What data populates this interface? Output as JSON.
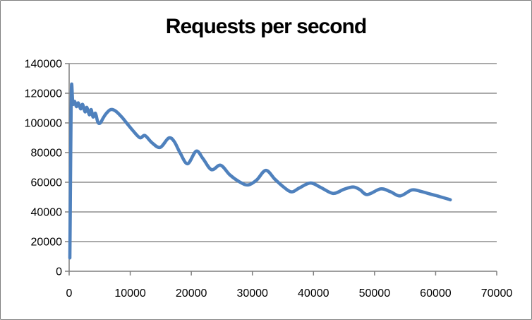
{
  "title": "Requests per second",
  "chart_data": {
    "type": "line",
    "title": "Requests per second",
    "legend_position": "none",
    "grid": "horizontal-only",
    "x_axis": {
      "min": 0,
      "max": 70000,
      "tick_interval": 10000,
      "tick_labels": [
        "0",
        "10000",
        "20000",
        "30000",
        "40000",
        "50000",
        "60000",
        "70000"
      ]
    },
    "y_axis": {
      "min": 0,
      "max": 140000,
      "tick_interval": 20000,
      "tick_labels": [
        "0",
        "20000",
        "40000",
        "60000",
        "80000",
        "100000",
        "120000",
        "140000"
      ]
    },
    "colors": {
      "line": "#4F81BD",
      "gridline": "#8E8E8E",
      "axis": "#7F7F7F",
      "label": "#000000",
      "title": "#000000",
      "background": "#FFFFFF",
      "border": "#7E7E7E"
    },
    "series": [
      {
        "name": "Requests per second",
        "color": "#4F81BD",
        "smooth": true,
        "points": [
          [
            120,
            9000
          ],
          [
            200,
            50000
          ],
          [
            300,
            100000
          ],
          [
            400,
            126000
          ],
          [
            600,
            113000
          ],
          [
            900,
            114500
          ],
          [
            1200,
            111000
          ],
          [
            1500,
            113500
          ],
          [
            1900,
            109500
          ],
          [
            2200,
            112500
          ],
          [
            2600,
            107500
          ],
          [
            2900,
            110500
          ],
          [
            3300,
            105500
          ],
          [
            3600,
            109000
          ],
          [
            3900,
            104000
          ],
          [
            4300,
            106500
          ],
          [
            4700,
            100500
          ],
          [
            5100,
            100000
          ],
          [
            5600,
            103500
          ],
          [
            6100,
            106500
          ],
          [
            6800,
            109000
          ],
          [
            7600,
            108000
          ],
          [
            8600,
            104000
          ],
          [
            9500,
            99500
          ],
          [
            10500,
            94500
          ],
          [
            11600,
            90000
          ],
          [
            12400,
            91500
          ],
          [
            13600,
            86500
          ],
          [
            14900,
            83500
          ],
          [
            16300,
            89800
          ],
          [
            17200,
            87500
          ],
          [
            18200,
            79500
          ],
          [
            19400,
            72500
          ],
          [
            20800,
            81000
          ],
          [
            21900,
            76000
          ],
          [
            23300,
            68500
          ],
          [
            24800,
            71500
          ],
          [
            26300,
            65000
          ],
          [
            28000,
            60000
          ],
          [
            29300,
            58200
          ],
          [
            30700,
            61500
          ],
          [
            32200,
            68000
          ],
          [
            33700,
            62000
          ],
          [
            35100,
            56800
          ],
          [
            36400,
            53500
          ],
          [
            37700,
            56200
          ],
          [
            39500,
            59500
          ],
          [
            41200,
            56500
          ],
          [
            43200,
            52500
          ],
          [
            45000,
            55300
          ],
          [
            46500,
            56800
          ],
          [
            47600,
            55000
          ],
          [
            48800,
            51700
          ],
          [
            51000,
            55500
          ],
          [
            52600,
            53600
          ],
          [
            54200,
            50800
          ],
          [
            56100,
            54800
          ],
          [
            57600,
            53800
          ],
          [
            58900,
            52300
          ],
          [
            60700,
            50300
          ],
          [
            62400,
            48200
          ]
        ]
      }
    ]
  }
}
